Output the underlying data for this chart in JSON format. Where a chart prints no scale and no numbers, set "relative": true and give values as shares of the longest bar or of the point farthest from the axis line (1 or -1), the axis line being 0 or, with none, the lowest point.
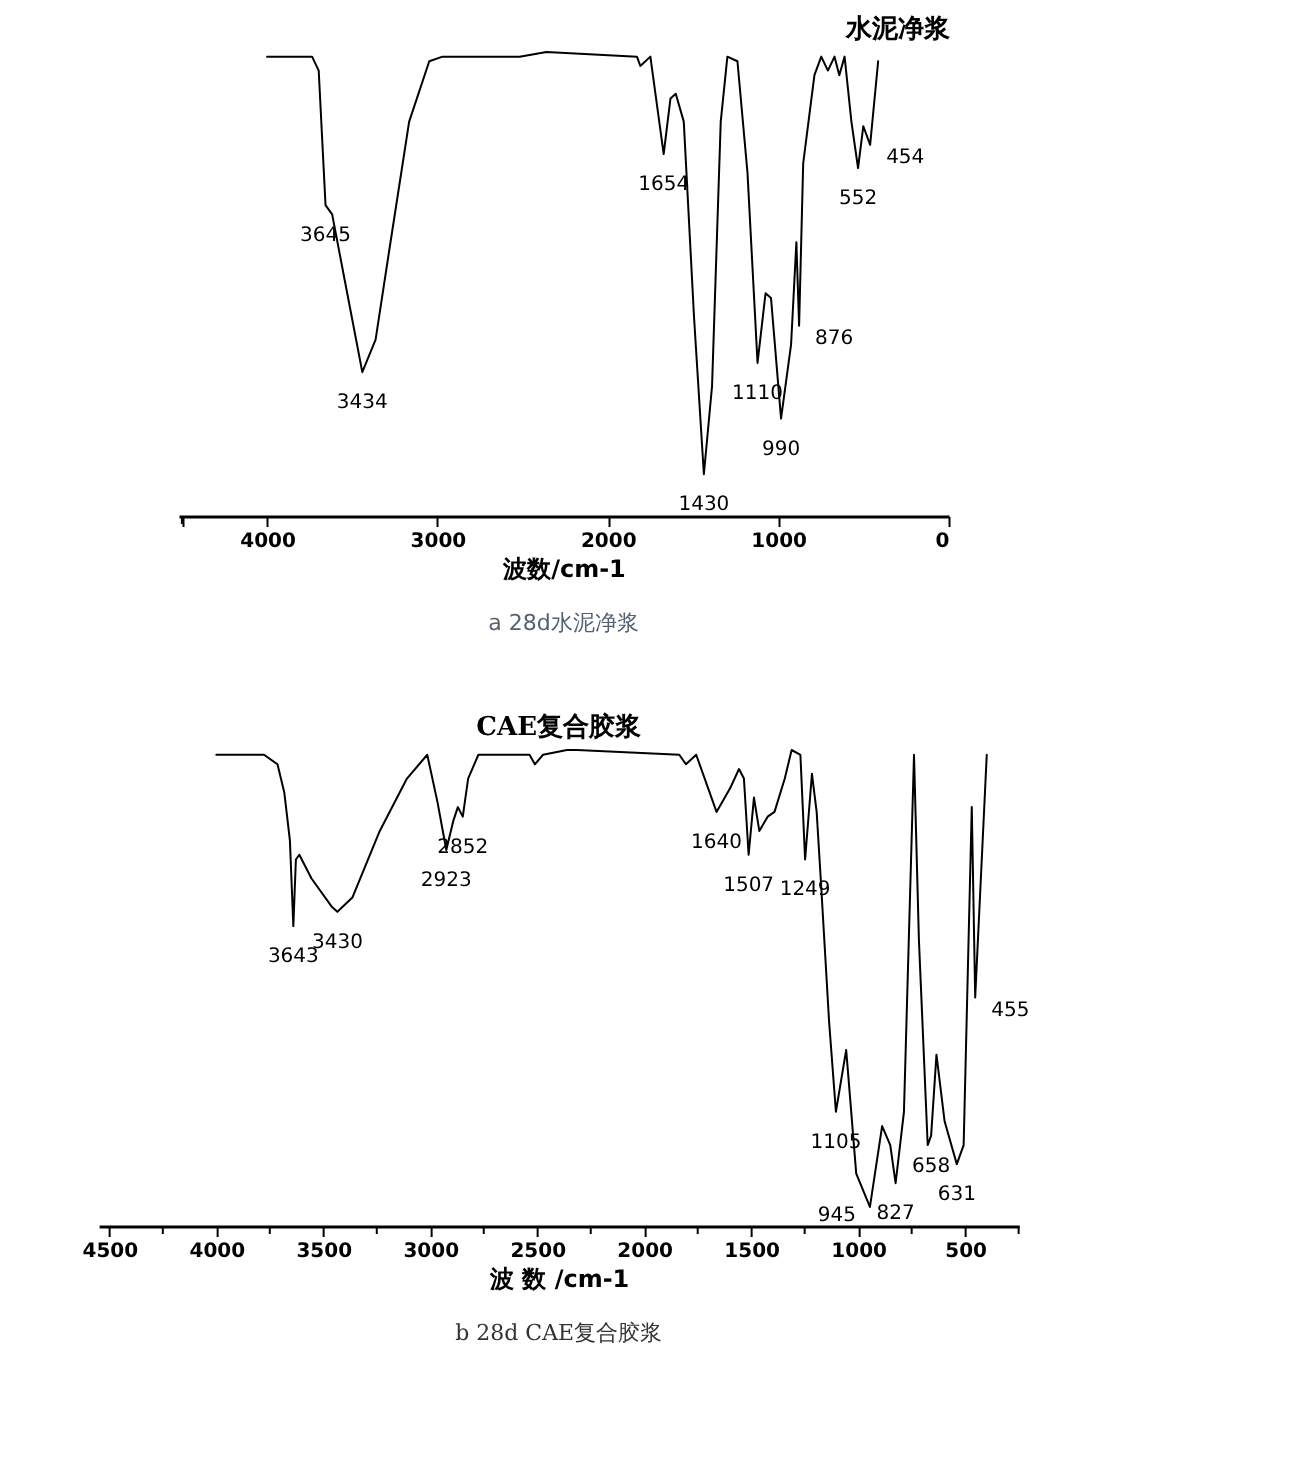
{
  "chart_data": [
    {
      "type": "line",
      "title": "水泥净浆",
      "xlabel": "波数/cm-1",
      "relative": true,
      "tick_labels": "x",
      "grid": false,
      "color": "#000000",
      "xlim": [
        4520,
        0
      ],
      "xticks": [
        {
          "value": 4500,
          "label": null
        },
        4000,
        3000,
        2000,
        1000,
        0
      ],
      "x": [
        4000,
        3736,
        3697,
        3657,
        3618,
        3540,
        3441,
        3363,
        3284,
        3166,
        3048,
        2970,
        2517,
        2360,
        1829,
        1809,
        1750,
        1672,
        1632,
        1601,
        1554,
        1494,
        1436,
        1388,
        1337,
        1298,
        1239,
        1180,
        1121,
        1074,
        1042,
        983,
        924,
        893,
        877,
        853,
        787,
        747,
        708,
        669,
        641,
        610,
        570,
        531,
        500,
        460,
        413
      ],
      "values": [
        0.99,
        0.99,
        0.96,
        0.67,
        0.65,
        0.5,
        0.31,
        0.38,
        0.57,
        0.85,
        0.98,
        0.99,
        0.99,
        1.0,
        0.99,
        0.97,
        0.99,
        0.78,
        0.9,
        0.91,
        0.85,
        0.43,
        0.09,
        0.28,
        0.85,
        0.99,
        0.98,
        0.74,
        0.33,
        0.48,
        0.47,
        0.21,
        0.37,
        0.59,
        0.41,
        0.76,
        0.95,
        0.99,
        0.96,
        0.99,
        0.95,
        0.99,
        0.85,
        0.75,
        0.84,
        0.8,
        0.98
      ],
      "annotations": [
        {
          "text": "3645",
          "x": 3657,
          "y": 0.67
        },
        {
          "text": "3434",
          "x": 3441,
          "y": 0.31
        },
        {
          "text": "1654",
          "x": 1672,
          "y": 0.78
        },
        {
          "text": "1430",
          "x": 1436,
          "y": 0.09
        },
        {
          "text": "1110",
          "x": 1121,
          "y": 0.33
        },
        {
          "text": "990",
          "x": 983,
          "y": 0.21
        },
        {
          "text": "876",
          "x": 877,
          "y": 0.41
        },
        {
          "text": "552",
          "x": 531,
          "y": 0.75
        },
        {
          "text": "454",
          "x": 460,
          "y": 0.8
        },
        "a 28d水泥净浆"
      ]
    },
    {
      "type": "line",
      "title": "CAE复合胶浆",
      "xlabel": "波 数 /cm-1",
      "relative": true,
      "tick_labels": "x",
      "grid": false,
      "color": "#000000",
      "xlim": [
        4550,
        250
      ],
      "xticks": [
        4500,
        {
          "value": 4250,
          "label": null
        },
        4000,
        {
          "value": 3750,
          "label": null
        },
        3500,
        {
          "value": 3250,
          "label": null
        },
        3000,
        {
          "value": 2750,
          "label": null
        },
        2500,
        {
          "value": 2250,
          "label": null
        },
        2000,
        {
          "value": 1750,
          "label": null
        },
        1500,
        {
          "value": 1250,
          "label": null
        },
        1000,
        {
          "value": 750,
          "label": null
        },
        500,
        {
          "value": 250,
          "label": null
        }
      ],
      "x": [
        4000,
        3873,
        3777,
        3714,
        3682,
        3656,
        3640,
        3628,
        3612,
        3555,
        3459,
        3434,
        3364,
        3236,
        3109,
        3014,
        2966,
        2925,
        2893,
        2871,
        2848,
        2823,
        2775,
        2536,
        2511,
        2473,
        2361,
        2314,
        1836,
        1805,
        1757,
        1662,
        1598,
        1557,
        1534,
        1512,
        1487,
        1462,
        1423,
        1391,
        1343,
        1311,
        1270,
        1248,
        1216,
        1194,
        1175,
        1136,
        1104,
        1056,
        1009,
        945,
        888,
        850,
        825,
        786,
        739,
        716,
        675,
        659,
        634,
        596,
        539,
        507,
        469,
        453,
        399
      ],
      "values": [
        0.99,
        0.99,
        0.99,
        0.97,
        0.91,
        0.81,
        0.63,
        0.77,
        0.78,
        0.73,
        0.67,
        0.66,
        0.69,
        0.83,
        0.94,
        0.99,
        0.89,
        0.79,
        0.85,
        0.88,
        0.86,
        0.94,
        0.99,
        0.99,
        0.97,
        0.99,
        1.0,
        1.0,
        0.99,
        0.97,
        0.99,
        0.87,
        0.92,
        0.96,
        0.94,
        0.78,
        0.9,
        0.83,
        0.86,
        0.87,
        0.94,
        1.0,
        0.99,
        0.77,
        0.95,
        0.87,
        0.73,
        0.43,
        0.24,
        0.37,
        0.11,
        0.04,
        0.21,
        0.17,
        0.09,
        0.24,
        0.99,
        0.6,
        0.17,
        0.19,
        0.36,
        0.22,
        0.13,
        0.17,
        0.88,
        0.48,
        0.99
      ],
      "annotations": [
        {
          "text": "3643",
          "x": 3640,
          "y": 0.63
        },
        {
          "text": "3430",
          "x": 3434,
          "y": 0.66
        },
        {
          "text": "2923",
          "x": 2925,
          "y": 0.79
        },
        {
          "text": "2852",
          "x": 2848,
          "y": 0.86
        },
        {
          "text": "1640",
          "x": 1662,
          "y": 0.87
        },
        {
          "text": "1507",
          "x": 1512,
          "y": 0.78
        },
        {
          "text": "1249",
          "x": 1248,
          "y": 0.77
        },
        {
          "text": "1105",
          "x": 1104,
          "y": 0.24
        },
        {
          "text": "945",
          "x": 945,
          "y": 0.04
        },
        {
          "text": "827",
          "x": 825,
          "y": 0.09
        },
        {
          "text": "658",
          "x": 659,
          "y": 0.19
        },
        {
          "text": "631",
          "x": 539,
          "y": 0.13
        },
        {
          "text": "455",
          "x": 453,
          "y": 0.48
        },
        "b 28d CAE复合胶浆"
      ]
    }
  ]
}
